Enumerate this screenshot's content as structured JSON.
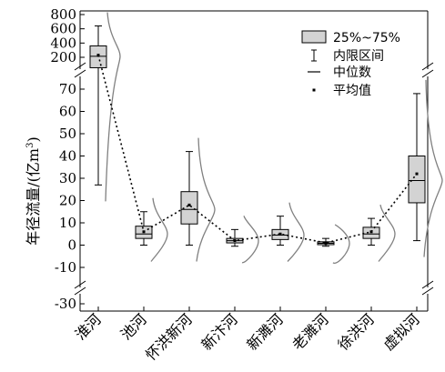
{
  "chart_data": {
    "type": "box",
    "ylabel": "年径流量/(亿m³)",
    "ylabel_main": "年径流量/(亿m",
    "ylabel_sup": "3",
    "ylabel_tail": ")",
    "categories": [
      "淮河",
      "池河",
      "怀洪新河",
      "新汴河",
      "新濉河",
      "老濉河",
      "徐洪河",
      "虚拟河"
    ],
    "axis": {
      "broken": true,
      "upper_segment_ticks": [
        200,
        400,
        600,
        800
      ],
      "lower_segment_ticks": [
        -10,
        0,
        10,
        20,
        30,
        40,
        50,
        60,
        70
      ],
      "bottom_tick": -30
    },
    "boxes": [
      {
        "category": "淮河",
        "whisker_low": 27,
        "q1": 120,
        "median": 215,
        "q3": 360,
        "whisker_high": 640,
        "mean": 230
      },
      {
        "category": "池河",
        "whisker_low": 0,
        "q1": 3,
        "median": 5,
        "q3": 8.5,
        "whisker_high": 15,
        "mean": 6
      },
      {
        "category": "怀洪新河",
        "whisker_low": 0,
        "q1": 9.5,
        "median": 16,
        "q3": 24,
        "whisker_high": 42,
        "mean": 18
      },
      {
        "category": "新汴河",
        "whisker_low": -0.5,
        "q1": 1,
        "median": 2,
        "q3": 3,
        "whisker_high": 7,
        "mean": 2
      },
      {
        "category": "新濉河",
        "whisker_low": 0,
        "q1": 2.5,
        "median": 4.5,
        "q3": 7,
        "whisker_high": 13,
        "mean": 5
      },
      {
        "category": "老濉河",
        "whisker_low": -0.5,
        "q1": 0.2,
        "median": 0.8,
        "q3": 1.5,
        "whisker_high": 3,
        "mean": 1
      },
      {
        "category": "徐洪河",
        "whisker_low": 0,
        "q1": 3,
        "median": 5,
        "q3": 8,
        "whisker_high": 12,
        "mean": 6
      },
      {
        "category": "虚拟河",
        "whisker_low": 2,
        "q1": 19,
        "median": 29,
        "q3": 40,
        "whisker_high": 68,
        "mean": 32
      }
    ],
    "mean_line": "dotted",
    "legend": {
      "placement": "top-right",
      "items": [
        {
          "symbol": "box",
          "label": "25%~75%"
        },
        {
          "symbol": "whisker",
          "label": "内限区间"
        },
        {
          "symbol": "line",
          "label": "中位数"
        },
        {
          "symbol": "dot",
          "label": "平均值"
        }
      ]
    },
    "colors": {
      "box_fill": "#d3d3d3",
      "box_stroke": "#000000",
      "distribution_curve": "#808080",
      "mean_line": "#000000"
    },
    "grid": false
  }
}
